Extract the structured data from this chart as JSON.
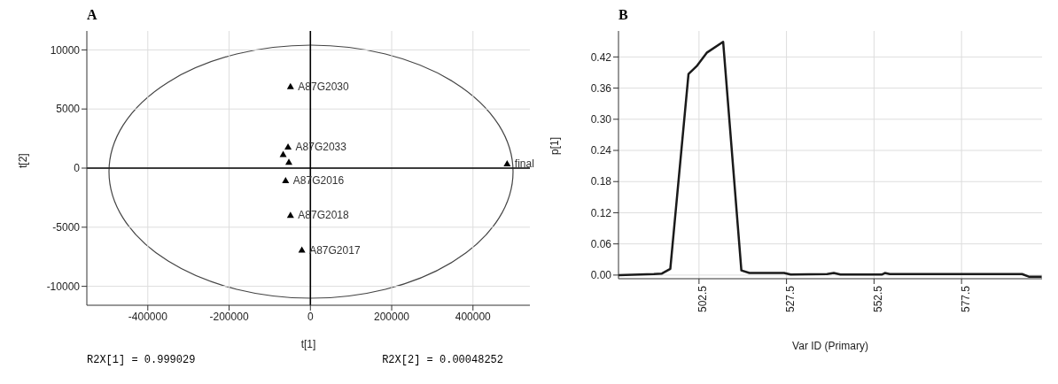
{
  "chart_data": [
    {
      "type": "scatter",
      "title": "A",
      "xlabel": "t[1]",
      "ylabel": "t[2]",
      "xlim": [
        -550000,
        540000
      ],
      "ylim": [
        -11600,
        11600
      ],
      "xticks": [
        -400000,
        -200000,
        0,
        200000,
        400000
      ],
      "yticks": [
        -10000,
        -5000,
        0,
        5000,
        10000
      ],
      "grid": true,
      "series": [
        {
          "color": "#000000",
          "marker": "triangle",
          "x": [
            -49000,
            -55000,
            -67000,
            -53000,
            -61000,
            -49000,
            -21000,
            484000
          ],
          "values": [
            6900,
            1790,
            1160,
            510,
            -1050,
            -3980,
            -6930,
            370
          ],
          "value_labels": [
            "A87G2030",
            "A87G2033",
            null,
            null,
            "A87G2016",
            "A87G2018",
            "A87G2017",
            "final"
          ]
        }
      ],
      "annotations": [
        "R2X[1] = 0.999029",
        "R2X[2] = 0.00048252"
      ]
    },
    {
      "type": "line",
      "title": "B",
      "xlabel": "Var ID (Primary)",
      "ylabel": "p[1]",
      "xlim": [
        479.5,
        600.5
      ],
      "ylim": [
        -0.007,
        0.47
      ],
      "xticks": [
        502.5,
        527.5,
        552.5,
        577.5
      ],
      "yticks": [
        {
          "value": 0,
          "label": "0.00"
        },
        {
          "value": 0.06,
          "label": "0.06"
        },
        {
          "value": 0.12,
          "label": "0.12"
        },
        {
          "value": 0.18,
          "label": "0.18"
        },
        {
          "value": 0.24,
          "label": "0.24"
        },
        {
          "value": 0.3,
          "label": "0.30"
        },
        {
          "value": 0.36,
          "label": "0.36"
        },
        {
          "value": 0.42,
          "label": "0.42"
        }
      ],
      "grid": true,
      "series": [
        {
          "color": "#1a1a1a",
          "x": [
            479.5,
            489.6,
            491.9,
            494.3,
            499.5,
            501.8,
            504.7,
            509.4,
            514.6,
            516.9,
            526.8,
            528.7,
            539.1,
            541,
            542.9,
            554.7,
            555.6,
            557,
            594.8,
            596.7,
            600.4
          ],
          "values": [
            0,
            0.002,
            0.003,
            0.012,
            0.387,
            0.402,
            0.428,
            0.449,
            0.009,
            0.004,
            0.004,
            0.001,
            0.002,
            0.004,
            0.001,
            0.001,
            0.004,
            0.002,
            0.002,
            -0.003,
            -0.003
          ]
        }
      ]
    }
  ]
}
